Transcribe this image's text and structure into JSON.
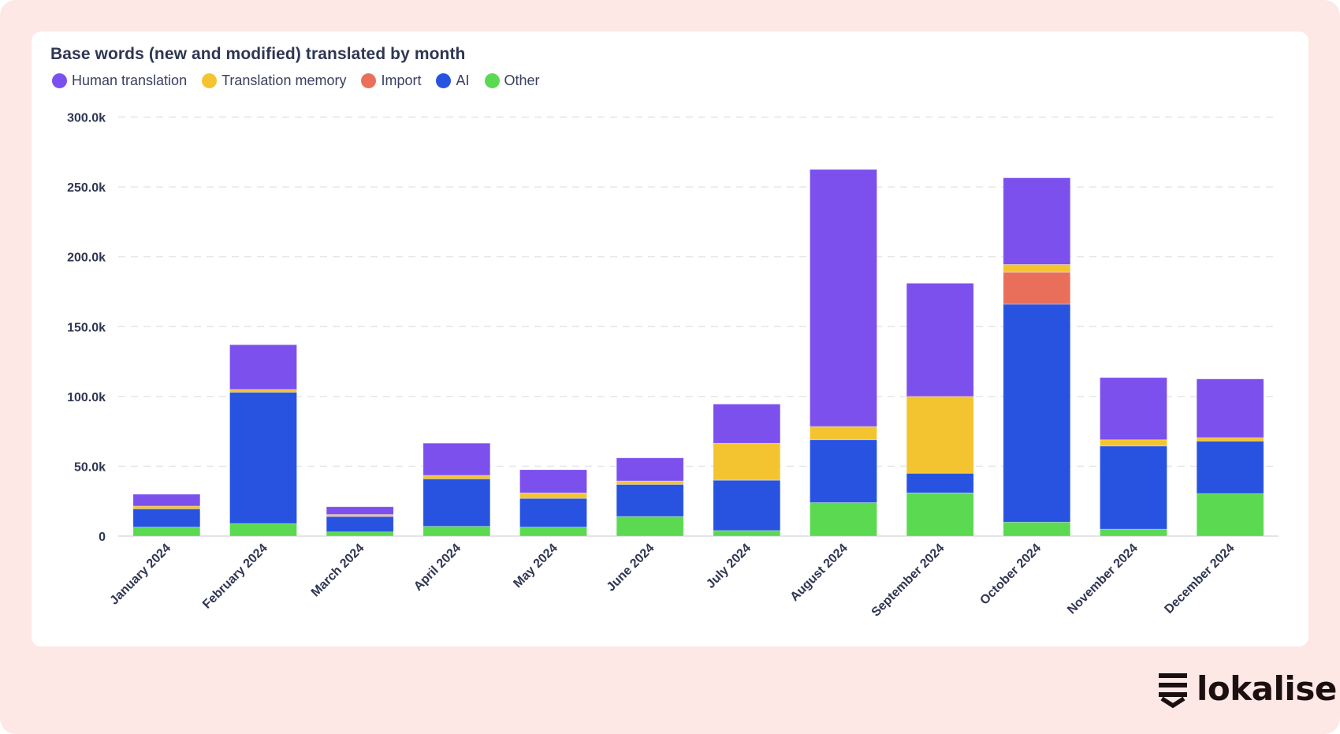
{
  "brand": {
    "name": "lokalise",
    "icon": "lokalise-logo-icon"
  },
  "colors": {
    "page_background": "#fde8e6",
    "card_background": "#ffffff",
    "text": "#2f3653",
    "grid": "#e6e6ea"
  },
  "chart_data": {
    "type": "bar",
    "stacked": true,
    "title": "Base words (new and modified) translated by month",
    "xlabel": "",
    "ylabel": "",
    "ylim": [
      0,
      300000
    ],
    "yticks": [
      0,
      50000,
      100000,
      150000,
      200000,
      250000,
      300000
    ],
    "ytick_labels": [
      "0",
      "50.0k",
      "100.0k",
      "150.0k",
      "200.0k",
      "250.0k",
      "300.0k"
    ],
    "grid": true,
    "legend_position": "top-left",
    "categories": [
      "January 2024",
      "February 2024",
      "March 2024",
      "April 2024",
      "May 2024",
      "June 2024",
      "July 2024",
      "August 2024",
      "September 2024",
      "October 2024",
      "November 2024",
      "December 2024"
    ],
    "series": [
      {
        "name": "Other",
        "color": "#5bd951",
        "values": [
          6500,
          9000,
          3000,
          7000,
          6500,
          14000,
          4000,
          24000,
          31000,
          10000,
          5000,
          30500
        ]
      },
      {
        "name": "AI",
        "color": "#2753e0",
        "values": [
          13000,
          94000,
          11000,
          34000,
          20500,
          23000,
          36000,
          45000,
          14000,
          156000,
          59500,
          37500
        ]
      },
      {
        "name": "Import",
        "color": "#ea6f5a",
        "values": [
          0,
          0,
          500,
          0,
          0,
          0,
          0,
          0,
          0,
          23000,
          0,
          0
        ]
      },
      {
        "name": "Translation memory",
        "color": "#f4c430",
        "values": [
          2000,
          2000,
          1000,
          2500,
          4000,
          2500,
          26500,
          9500,
          55000,
          5500,
          4500,
          2500
        ]
      },
      {
        "name": "Human translation",
        "color": "#7b50ed",
        "values": [
          8500,
          32000,
          5500,
          23000,
          16500,
          16500,
          28000,
          184000,
          81000,
          62000,
          44500,
          42000
        ]
      }
    ],
    "legend": [
      {
        "label": "Human translation",
        "color": "#7b50ed"
      },
      {
        "label": "Translation memory",
        "color": "#f4c430"
      },
      {
        "label": "Import",
        "color": "#ea6f5a"
      },
      {
        "label": "AI",
        "color": "#2753e0"
      },
      {
        "label": "Other",
        "color": "#5bd951"
      }
    ]
  }
}
